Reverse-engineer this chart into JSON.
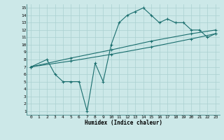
{
  "xlabel": "Humidex (Indice chaleur)",
  "xlim": [
    -0.5,
    23.5
  ],
  "ylim": [
    0.5,
    15.5
  ],
  "xticks": [
    0,
    1,
    2,
    3,
    4,
    5,
    6,
    7,
    8,
    9,
    10,
    11,
    12,
    13,
    14,
    15,
    16,
    17,
    18,
    19,
    20,
    21,
    22,
    23
  ],
  "yticks": [
    1,
    2,
    3,
    4,
    5,
    6,
    7,
    8,
    9,
    10,
    11,
    12,
    13,
    14,
    15
  ],
  "bg_color": "#cce8e8",
  "grid_color": "#aad0d0",
  "line_color": "#1a6e6e",
  "line1_x": [
    0,
    2,
    3,
    4,
    5,
    6,
    7,
    8,
    9,
    10,
    11,
    12,
    13,
    14,
    15,
    16,
    17,
    18,
    19,
    20,
    21,
    22,
    23
  ],
  "line1_y": [
    7,
    8,
    6,
    5,
    5,
    5,
    1,
    7.5,
    5,
    10,
    13,
    14,
    14.5,
    15,
    14,
    13,
    13.5,
    13,
    13,
    12,
    12,
    11,
    11.5
  ],
  "line2_x": [
    0,
    5,
    10,
    15,
    20,
    23
  ],
  "line2_y": [
    7,
    8.2,
    9.3,
    10.5,
    11.5,
    12.0
  ],
  "line3_x": [
    0,
    5,
    10,
    15,
    20,
    23
  ],
  "line3_y": [
    7,
    7.8,
    8.7,
    9.7,
    10.8,
    11.5
  ],
  "figsize": [
    3.2,
    2.0
  ],
  "dpi": 100
}
